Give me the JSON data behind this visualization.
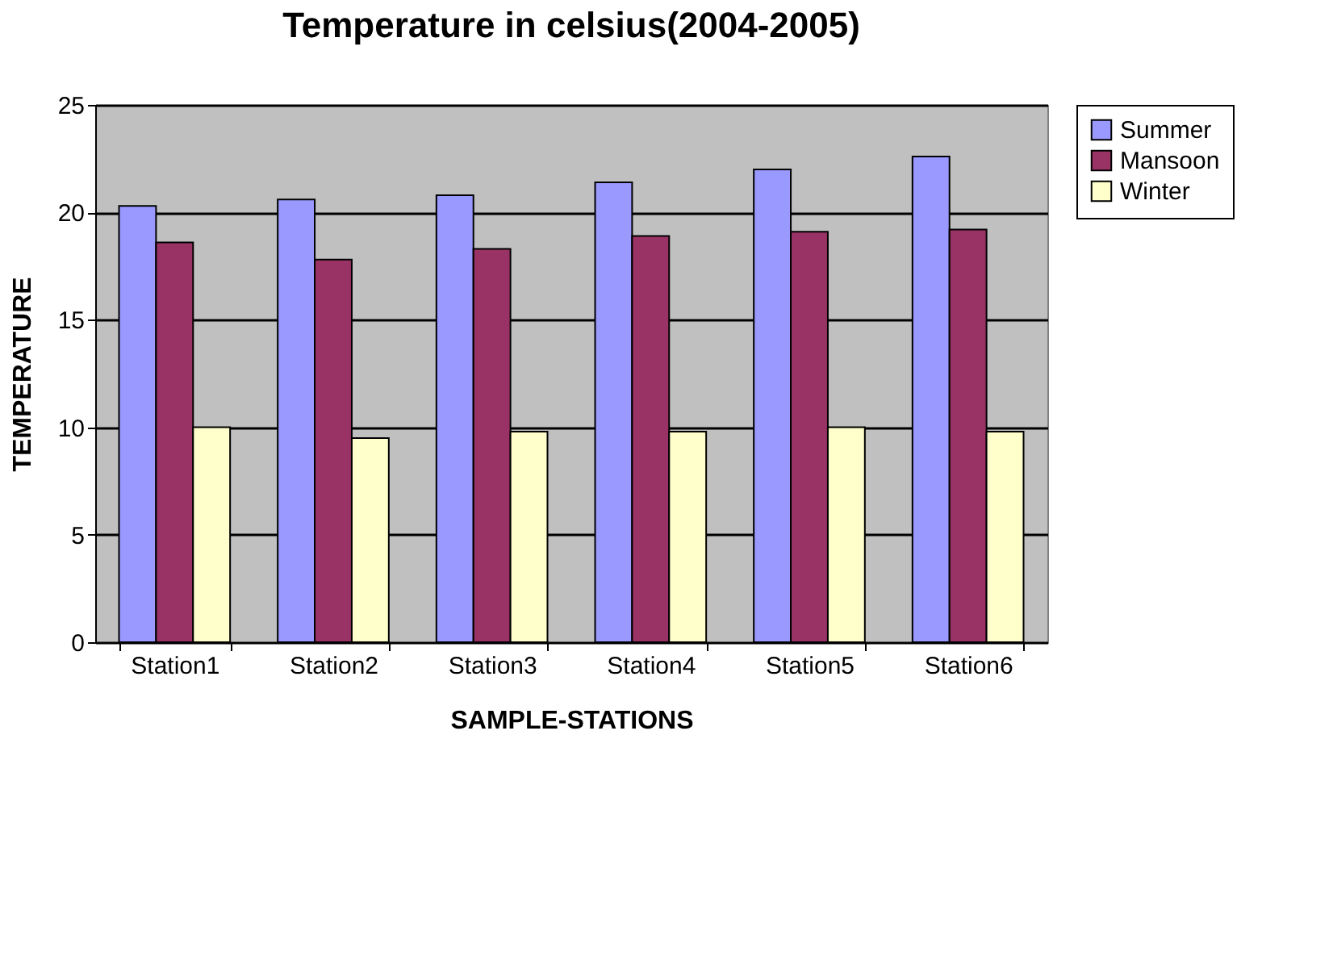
{
  "chart_data": {
    "type": "bar",
    "title": "Temperature in celsius(2004-2005)",
    "xlabel": "SAMPLE-STATIONS",
    "ylabel": "TEMPERATURE",
    "categories": [
      "Station1",
      "Station2",
      "Station3",
      "Station4",
      "Station5",
      "Station6"
    ],
    "series": [
      {
        "name": "Summer",
        "color": "#9999ff",
        "values": [
          20.3,
          20.6,
          20.8,
          21.4,
          22.0,
          22.6
        ]
      },
      {
        "name": "Mansoon",
        "color": "#993366",
        "values": [
          18.6,
          17.8,
          18.3,
          18.9,
          19.1,
          19.2
        ]
      },
      {
        "name": "Winter",
        "color": "#ffffcc",
        "values": [
          10.0,
          9.5,
          9.8,
          9.8,
          10.0,
          9.8
        ]
      }
    ],
    "ylim": [
      0,
      25
    ],
    "yticks": [
      0,
      5,
      10,
      15,
      20,
      25
    ],
    "grid": "y",
    "legend": "right"
  }
}
